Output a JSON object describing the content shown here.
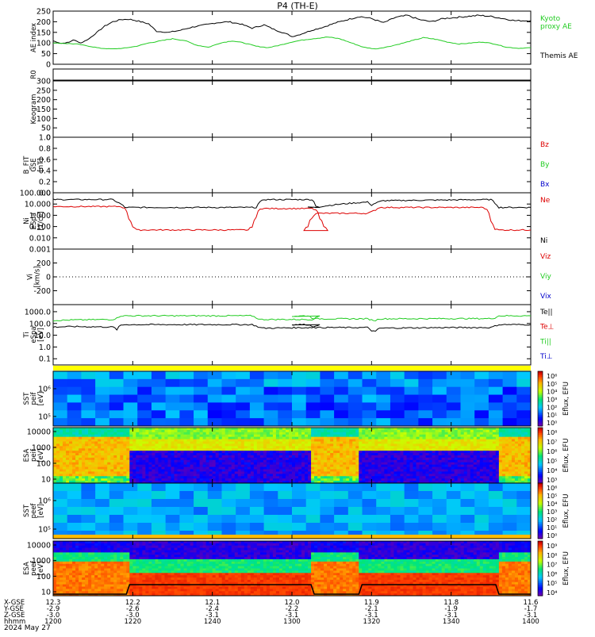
{
  "title": "P4 (TH-E)",
  "date_label": "2024 May 27",
  "colors": {
    "black": "#000000",
    "red": "#dd0000",
    "green": "#22cc22",
    "blue": "#0000cc",
    "kyoto": "#22cc22"
  },
  "chart_data": [
    {
      "id": "ae",
      "type": "line",
      "ylabel": "AE index",
      "ylim": [
        0,
        250
      ],
      "yticks": [
        "0",
        "50",
        "100",
        "150",
        "200",
        "250"
      ],
      "legend": [
        {
          "name": "Kyoto proxy AE",
          "label_lines": [
            "Kyoto",
            "proxy AE"
          ],
          "color": "#22cc22"
        },
        {
          "name": "Themis AE",
          "label_lines": [
            "Themis AE"
          ],
          "color": "#000000"
        }
      ],
      "series": [
        {
          "name": "Themis AE",
          "color": "#000000",
          "x": [
            1200,
            1202,
            1204,
            1205,
            1207,
            1209,
            1211,
            1213,
            1215,
            1217,
            1219,
            1221,
            1224,
            1226,
            1229,
            1232,
            1235,
            1238,
            1241,
            1244,
            1247,
            1250,
            1253,
            1256,
            1259,
            1300,
            1302,
            1305,
            1308,
            1311,
            1314,
            1317,
            1320,
            1323,
            1326,
            1329,
            1332,
            1335,
            1338,
            1341,
            1344,
            1347,
            1350,
            1353,
            1356,
            1400
          ],
          "values": [
            110,
            98,
            103,
            115,
            100,
            120,
            150,
            180,
            200,
            210,
            212,
            205,
            190,
            155,
            150,
            160,
            175,
            185,
            195,
            200,
            190,
            170,
            185,
            160,
            140,
            130,
            140,
            160,
            175,
            195,
            210,
            225,
            215,
            195,
            220,
            230,
            210,
            200,
            215,
            220,
            225,
            230,
            225,
            215,
            205,
            205
          ]
        },
        {
          "name": "Kyoto proxy AE",
          "color": "#22cc22",
          "x": [
            1200,
            1203,
            1206,
            1209,
            1212,
            1215,
            1218,
            1221,
            1224,
            1227,
            1230,
            1233,
            1236,
            1239,
            1242,
            1245,
            1248,
            1251,
            1254,
            1257,
            1300,
            1303,
            1306,
            1309,
            1312,
            1315,
            1318,
            1321,
            1324,
            1327,
            1330,
            1333,
            1336,
            1339,
            1342,
            1345,
            1348,
            1351,
            1354,
            1357,
            1400
          ],
          "values": [
            100,
            98,
            95,
            85,
            75,
            72,
            76,
            85,
            100,
            110,
            120,
            112,
            90,
            80,
            100,
            110,
            100,
            85,
            78,
            90,
            105,
            115,
            122,
            128,
            120,
            100,
            80,
            72,
            82,
            95,
            110,
            125,
            118,
            105,
            95,
            100,
            105,
            95,
            80,
            75,
            78
          ]
        }
      ]
    },
    {
      "id": "keogram_r",
      "type": "line",
      "ylabel": "R0",
      "ylim": [
        0,
        1
      ],
      "yticks": [],
      "series": []
    },
    {
      "id": "keogram",
      "type": "line",
      "ylabel": "Keogram",
      "ylim": [
        0,
        300
      ],
      "yticks": [
        "0",
        "50",
        "100",
        "150",
        "200",
        "250",
        "300"
      ],
      "series": []
    },
    {
      "id": "bfield",
      "type": "line",
      "ylabel": "B_FIT GSE [nT]",
      "ylabel_lines": [
        "B_FIT",
        "GSE",
        "[nT]"
      ],
      "ylim": [
        0,
        1
      ],
      "yticks": [
        "0.0",
        "0.2",
        "0.4",
        "0.6",
        "0.8",
        "1.0"
      ],
      "legend": [
        {
          "name": "Bz",
          "label_lines": [
            "Bz"
          ],
          "color": "#dd0000"
        },
        {
          "name": "By",
          "label_lines": [
            "By"
          ],
          "color": "#22cc22"
        },
        {
          "name": "Bx",
          "label_lines": [
            "Bx"
          ],
          "color": "#0000cc"
        }
      ],
      "series": []
    },
    {
      "id": "density",
      "type": "line",
      "log": true,
      "ylabel": "Ni [1/cc]",
      "ylabel_lines": [
        "Ni",
        "eSpa",
        "[1/cc]"
      ],
      "ylim": [
        0.001,
        100
      ],
      "yticks": [
        "0.001",
        "0.010",
        "0.100",
        "1.000",
        "10.000",
        "100.000"
      ],
      "legend": [
        {
          "name": "Ne",
          "label_lines": [
            "Ne"
          ],
          "color": "#dd0000"
        },
        {
          "name": "Ni",
          "label_lines": [
            "Ni"
          ],
          "color": "#000000"
        }
      ],
      "series": [
        {
          "name": "Ni",
          "color": "#000000",
          "x": [
            1200,
            1215,
            1216,
            1218,
            1251,
            1252,
            1253,
            1265,
            1266,
            1267,
            1304,
            1305,
            1306,
            1319,
            1320,
            1321,
            1323,
            1350,
            1351,
            1352,
            1400
          ],
          "values": [
            25,
            25,
            15,
            5,
            5,
            15,
            25,
            25,
            7,
            5,
            5,
            5,
            5,
            15,
            8,
            12,
            20,
            25,
            12,
            5,
            5
          ]
        },
        {
          "name": "Ne",
          "color": "#dd0000",
          "x": [
            1200,
            1217,
            1218,
            1219,
            1220,
            1221,
            1249,
            1250,
            1251,
            1252,
            1265,
            1266,
            1267,
            1268,
            1269,
            1303,
            1304,
            1305,
            1306,
            1319,
            1320,
            1321,
            1322,
            1348,
            1349,
            1350,
            1351,
            1352,
            1400
          ],
          "values": [
            6,
            6,
            4,
            0.5,
            0.1,
            0.05,
            0.05,
            0.1,
            0.6,
            4,
            4,
            3,
            0.5,
            0.1,
            0.05,
            0.05,
            0.1,
            0.6,
            1.5,
            1.5,
            2,
            3,
            5,
            5,
            3,
            0.3,
            0.06,
            0.05,
            0.05
          ]
        }
      ]
    },
    {
      "id": "velocity",
      "type": "line",
      "ylabel": "Vi [km/s]",
      "ylabel_lines": [
        "Vi",
        "[km/s]"
      ],
      "ylim": [
        -400,
        400
      ],
      "yticks": [
        "-200",
        "0",
        "200"
      ],
      "legend": [
        {
          "name": "Viz",
          "label_lines": [
            "Viz"
          ],
          "color": "#dd0000"
        },
        {
          "name": "Viy",
          "label_lines": [
            "Viy"
          ],
          "color": "#22cc22"
        },
        {
          "name": "Vix",
          "label_lines": [
            "Vix"
          ],
          "color": "#0000cc"
        }
      ],
      "series": []
    },
    {
      "id": "temperature",
      "type": "line",
      "log": true,
      "ylabel": "Ti [eV]",
      "ylabel_lines": [
        "Ti",
        "eSpa",
        "[eV]"
      ],
      "ylim": [
        0.03,
        4000
      ],
      "yticks": [
        "0.1",
        "1.0",
        "10.0",
        "100.0",
        "1000.0"
      ],
      "legend": [
        {
          "name": "Te||",
          "label_lines": [
            "Te||"
          ],
          "color": "#000000"
        },
        {
          "name": "Te⊥",
          "label_lines": [
            "Te⊥"
          ],
          "color": "#dd0000"
        },
        {
          "name": "Ti||",
          "label_lines": [
            "Ti||"
          ],
          "color": "#22cc22"
        },
        {
          "name": "Ti⊥",
          "label_lines": [
            "Ti⊥"
          ],
          "color": "#0000cc"
        }
      ],
      "series": [
        {
          "name": "Ti||",
          "color": "#22cc22",
          "x": [
            1200,
            1205,
            1215,
            1216,
            1217,
            1230,
            1250,
            1251,
            1252,
            1265,
            1266,
            1267,
            1300,
            1304,
            1305,
            1306,
            1319,
            1320,
            1321,
            1322,
            1340,
            1350,
            1351,
            1352,
            1400
          ],
          "values": [
            180,
            200,
            220,
            280,
            450,
            450,
            450,
            300,
            220,
            220,
            300,
            450,
            420,
            450,
            300,
            250,
            250,
            200,
            180,
            250,
            260,
            260,
            300,
            450,
            450
          ]
        },
        {
          "name": "Te||",
          "color": "#000000",
          "x": [
            1200,
            1205,
            1215,
            1216,
            1217,
            1218,
            1230,
            1250,
            1251,
            1252,
            1253,
            1265,
            1266,
            1267,
            1300,
            1304,
            1305,
            1306,
            1319,
            1320,
            1321,
            1322,
            1340,
            1350,
            1351,
            1352,
            1400
          ],
          "values": [
            50,
            55,
            50,
            30,
            70,
            80,
            80,
            80,
            60,
            45,
            40,
            45,
            60,
            80,
            80,
            80,
            60,
            45,
            45,
            25,
            20,
            40,
            45,
            45,
            60,
            80,
            80
          ]
        }
      ]
    },
    {
      "id": "sst_omni",
      "type": "heatmap",
      "ylabel": "SST [eV]",
      "ylabel_lines": [
        "SST",
        "peif",
        "[eV]"
      ],
      "yticks": [
        "10⁵",
        "10⁶"
      ],
      "colorbar_label": "Eflux, EFU",
      "colorbar_ticks": [
        "10⁰",
        "10¹",
        "10²",
        "10³",
        "10⁴",
        "10⁵",
        "10⁶"
      ]
    },
    {
      "id": "esa_ion",
      "type": "heatmap",
      "ylabel": "ESA [eV]",
      "ylabel_lines": [
        "ESA",
        "peif",
        "[eV]"
      ],
      "yticks": [
        "10",
        "100",
        "1000",
        "10000"
      ],
      "colorbar_label": "Eflux, EFU",
      "colorbar_ticks": [
        "10³",
        "10⁴",
        "10⁵",
        "10⁶",
        "10⁷",
        "10⁸"
      ]
    },
    {
      "id": "sst_elec",
      "type": "heatmap",
      "ylabel": "SST [eV]",
      "ylabel_lines": [
        "SST",
        "peef",
        "[eV]"
      ],
      "yticks": [
        "10⁵",
        "10⁶"
      ],
      "colorbar_label": "Eflux, EFU",
      "colorbar_ticks": [
        "10⁰",
        "10¹",
        "10²",
        "10³",
        "10⁴",
        "10⁵",
        "10⁶"
      ]
    },
    {
      "id": "esa_elec",
      "type": "heatmap",
      "ylabel": "ESA [eV]",
      "ylabel_lines": [
        "ESA",
        "peef",
        "[eV]"
      ],
      "yticks": [
        "10",
        "100",
        "1000",
        "10000"
      ],
      "colorbar_label": "Eflux, EFU",
      "colorbar_ticks": [
        "10⁴",
        "10⁵",
        "10⁶",
        "10⁷",
        "10⁸",
        "10⁹"
      ]
    }
  ],
  "x_axis": {
    "xlim": [
      1200,
      1400
    ],
    "row_labels": [
      "X-GSE",
      "Y-GSE",
      "Z-GSE",
      "hhmm"
    ],
    "ticks": [
      {
        "x": 1200,
        "values": [
          "12.3",
          "-2.9",
          "-3.0",
          "1200"
        ]
      },
      {
        "x": 1220,
        "values": [
          "12.2",
          "-2.6",
          "-3.0",
          "1220"
        ]
      },
      {
        "x": 1240,
        "values": [
          "12.1",
          "-2.4",
          "-3.1",
          "1240"
        ]
      },
      {
        "x": 1300,
        "values": [
          "12.0",
          "-2.2",
          "-3.1",
          "1300"
        ]
      },
      {
        "x": 1320,
        "values": [
          "11.9",
          "-2.1",
          "-3.1",
          "1320"
        ]
      },
      {
        "x": 1340,
        "values": [
          "11.8",
          "-1.9",
          "-3.1",
          "1340"
        ]
      },
      {
        "x": 1400,
        "values": [
          "11.6",
          "-1.7",
          "-3.1",
          "1400"
        ]
      }
    ]
  }
}
